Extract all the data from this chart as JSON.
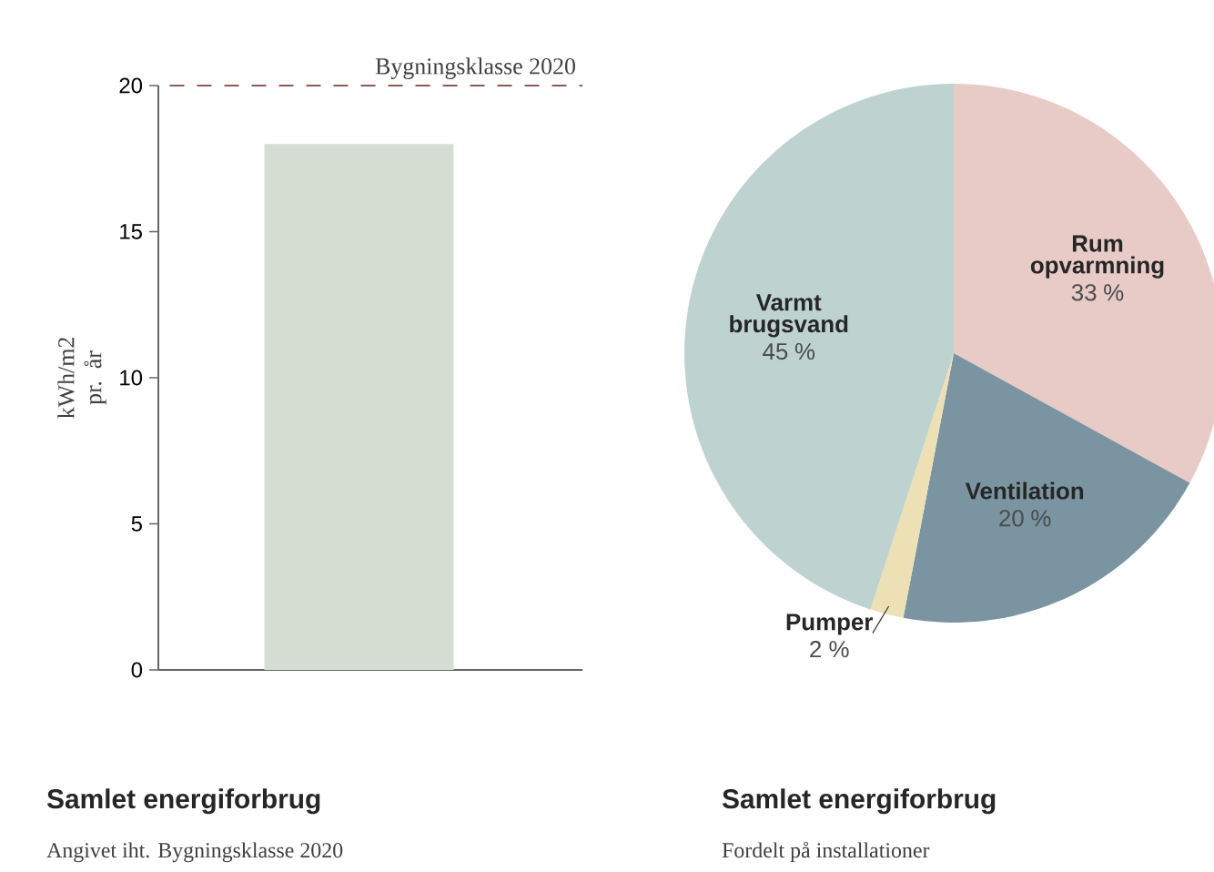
{
  "chart_data": [
    {
      "type": "bar",
      "title": "Samlet energiforbrug",
      "subtitle": "Angivet iht. Bygningsklasse 2020",
      "ylabel": "kWh/m2 pr. år",
      "categories": [
        null
      ],
      "values": [
        18
      ],
      "color": "#d6ddd2",
      "ylim": [
        0,
        20
      ],
      "yticks": [
        0,
        5,
        10,
        15,
        20
      ],
      "ref_lines": [
        {
          "axis": "y",
          "value": 20,
          "label": "Bygningsklasse 2020",
          "color": "#8b5a50",
          "line_style": "dashed"
        }
      ]
    },
    {
      "type": "pie",
      "title": "Samlet energiforbrug",
      "subtitle": "Fordelt på installationer",
      "categories": [
        "Rum opvarmning",
        "Ventilation",
        "Pumper",
        "Varmt brugsvand"
      ],
      "values": [
        33,
        20,
        2,
        45
      ],
      "value_labels": [
        "33 %",
        "20 %",
        "2 %",
        "45 %"
      ],
      "colors": [
        "#e8cbc6",
        "#7a95a1",
        "#ede0b5",
        "#bed3d0"
      ]
    }
  ]
}
